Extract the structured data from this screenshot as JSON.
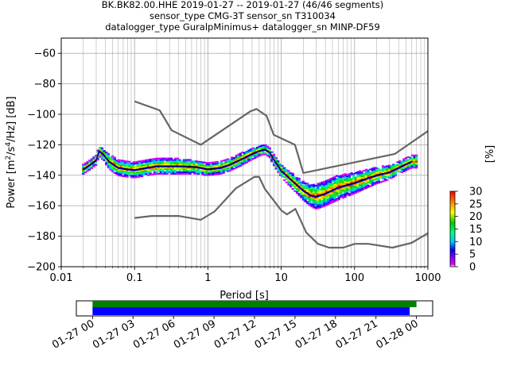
{
  "title_lines": [
    "BK.BK82.00.HHE   2019-01-27 -- 2019-01-27  (46/46 segments)",
    "sensor_type CMG-3T sensor_sn T310034",
    "datalogger_type GuralpMinimus+ datalogger_sn MINP-DF59"
  ],
  "chart_data": [
    {
      "type": "heatmap",
      "xlabel": "Period [s]",
      "ylabel": "Power [m²/s⁴/Hz] [dB]",
      "xscale": "log",
      "xlim": [
        0.01,
        1000
      ],
      "ylim": [
        -200,
        -50
      ],
      "x_ticks": [
        0.01,
        0.1,
        1,
        10,
        100,
        1000
      ],
      "x_tick_labels": [
        "0.01",
        "0.1",
        "1",
        "10",
        "100",
        "1000"
      ],
      "y_ticks": [
        -200,
        -180,
        -160,
        -140,
        -120,
        -100,
        -80,
        -60
      ],
      "y_tick_labels": [
        "−200",
        "−180",
        "−160",
        "−140",
        "−120",
        "−100",
        "−80",
        "−60"
      ],
      "grid": true,
      "colorbar": {
        "label": "[%]",
        "range": [
          0,
          30
        ],
        "ticks": [
          0,
          5,
          10,
          15,
          20,
          25,
          30
        ]
      },
      "series": [
        {
          "role": "high-noise-model",
          "color": "#666666",
          "points": [
            [
              0.1,
              -91.5
            ],
            [
              0.22,
              -97.4
            ],
            [
              0.32,
              -110.5
            ],
            [
              0.8,
              -120
            ],
            [
              3.8,
              -98
            ],
            [
              4.6,
              -96.5
            ],
            [
              6.3,
              -101
            ],
            [
              7.9,
              -113.5
            ],
            [
              15.4,
              -120
            ],
            [
              20,
              -138.5
            ],
            [
              354.8,
              -126
            ],
            [
              1000,
              -111
            ]
          ]
        },
        {
          "role": "low-noise-model",
          "color": "#666666",
          "points": [
            [
              0.1,
              -168
            ],
            [
              0.17,
              -166.7
            ],
            [
              0.4,
              -166.7
            ],
            [
              0.8,
              -169.2
            ],
            [
              1.24,
              -163.7
            ],
            [
              2.4,
              -148.6
            ],
            [
              4.3,
              -141.1
            ],
            [
              5,
              -141.1
            ],
            [
              6,
              -149
            ],
            [
              10,
              -163
            ],
            [
              12,
              -165.7
            ],
            [
              15.6,
              -162.1
            ],
            [
              21.9,
              -177.5
            ],
            [
              31.6,
              -185
            ],
            [
              45,
              -187.5
            ],
            [
              70,
              -187.5
            ],
            [
              101,
              -185
            ],
            [
              154,
              -185
            ],
            [
              328,
              -187.5
            ],
            [
              600,
              -184.4
            ],
            [
              1000,
              -178
            ]
          ]
        },
        {
          "role": "mean-psd",
          "color": "#000000",
          "points": [
            [
              0.02,
              -136
            ],
            [
              0.025,
              -133
            ],
            [
              0.03,
              -130
            ],
            [
              0.033,
              -124
            ],
            [
              0.037,
              -126
            ],
            [
              0.045,
              -131
            ],
            [
              0.06,
              -135
            ],
            [
              0.08,
              -136
            ],
            [
              0.1,
              -136.5
            ],
            [
              0.15,
              -135
            ],
            [
              0.2,
              -134
            ],
            [
              0.4,
              -134
            ],
            [
              0.7,
              -134.5
            ],
            [
              1,
              -136
            ],
            [
              1.5,
              -135
            ],
            [
              2,
              -133
            ],
            [
              3,
              -129
            ],
            [
              4,
              -126
            ],
            [
              5,
              -124
            ],
            [
              6,
              -123
            ],
            [
              7,
              -125
            ],
            [
              8,
              -130
            ],
            [
              10,
              -137
            ],
            [
              13,
              -142
            ],
            [
              17,
              -147
            ],
            [
              20,
              -150
            ],
            [
              25,
              -153
            ],
            [
              30,
              -154
            ],
            [
              40,
              -152
            ],
            [
              60,
              -148
            ],
            [
              100,
              -145
            ],
            [
              150,
              -142
            ],
            [
              200,
              -140
            ],
            [
              300,
              -138
            ],
            [
              400,
              -135
            ],
            [
              600,
              -131
            ]
          ]
        },
        {
          "role": "mode-psd",
          "color": "#0000ff",
          "points": [
            [
              0.02,
              -136.5
            ],
            [
              0.025,
              -133.5
            ],
            [
              0.03,
              -130.5
            ],
            [
              0.033,
              -124.5
            ],
            [
              0.037,
              -126.5
            ],
            [
              0.045,
              -131.5
            ],
            [
              0.06,
              -135.5
            ],
            [
              0.08,
              -136.5
            ],
            [
              0.1,
              -137
            ],
            [
              0.15,
              -135.5
            ],
            [
              0.2,
              -134.5
            ],
            [
              0.4,
              -134.5
            ],
            [
              0.7,
              -135
            ],
            [
              1,
              -136.5
            ],
            [
              1.5,
              -135.5
            ],
            [
              2,
              -133.5
            ],
            [
              3,
              -129.5
            ],
            [
              4,
              -126.5
            ],
            [
              5,
              -124.5
            ],
            [
              6,
              -123.5
            ],
            [
              7,
              -125.5
            ],
            [
              8,
              -130.5
            ],
            [
              10,
              -137.5
            ],
            [
              13,
              -142.5
            ],
            [
              17,
              -147.5
            ],
            [
              20,
              -150.5
            ],
            [
              25,
              -153.5
            ],
            [
              30,
              -154.5
            ],
            [
              40,
              -152.5
            ],
            [
              60,
              -148.5
            ],
            [
              100,
              -145.5
            ],
            [
              150,
              -142.5
            ],
            [
              200,
              -140.5
            ],
            [
              300,
              -138.5
            ],
            [
              400,
              -135.5
            ],
            [
              600,
              -131.5
            ]
          ]
        }
      ],
      "density_spread_db": [
        [
          0.02,
          2
        ],
        [
          0.03,
          2
        ],
        [
          0.05,
          4
        ],
        [
          0.1,
          4
        ],
        [
          0.4,
          4
        ],
        [
          1,
          3
        ],
        [
          3,
          3
        ],
        [
          6,
          2
        ],
        [
          10,
          3
        ],
        [
          20,
          5
        ],
        [
          30,
          7
        ],
        [
          60,
          7
        ],
        [
          150,
          5
        ],
        [
          400,
          3
        ],
        [
          700,
          3
        ]
      ]
    },
    {
      "type": "timeline",
      "x_tick_labels": [
        "01-27 00",
        "01-27 03",
        "01-27 06",
        "01-27 09",
        "01-27 12",
        "01-27 15",
        "01-27 18",
        "01-27 21",
        "01-28 00"
      ],
      "x_ticks_hours": [
        0,
        3,
        6,
        9,
        12,
        15,
        18,
        21,
        24
      ],
      "xlim_hours": [
        -1.2,
        25.2
      ],
      "bars": [
        {
          "color": "#008000",
          "start_hours": 0,
          "end_hours": 24.0
        },
        {
          "color": "#0000ff",
          "start_hours": 0,
          "end_hours": 23.5
        }
      ]
    }
  ]
}
